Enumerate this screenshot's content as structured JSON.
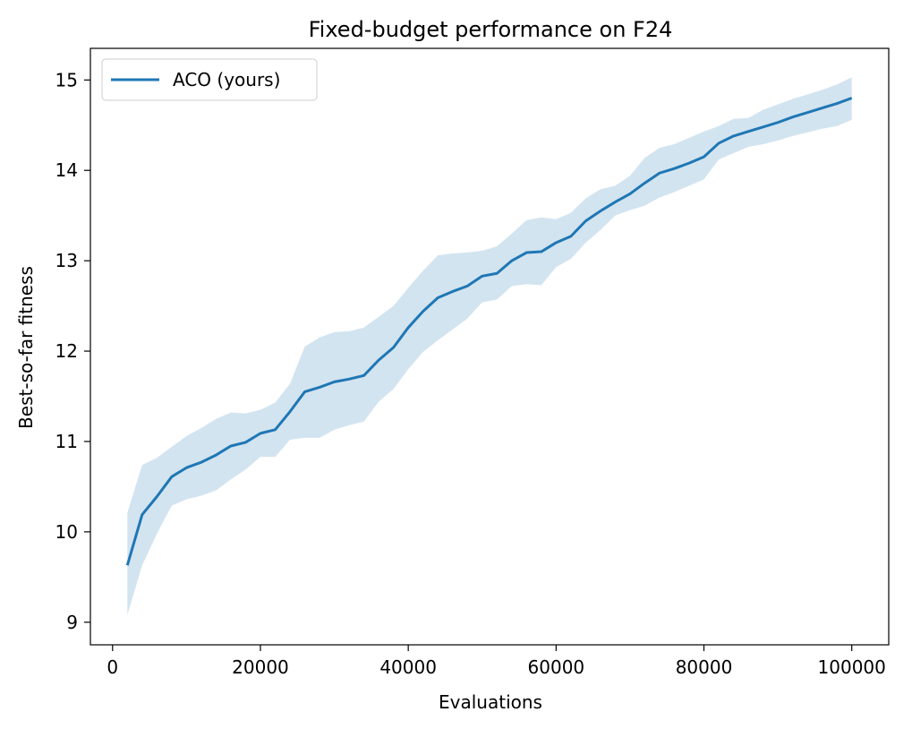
{
  "chart_data": {
    "type": "line",
    "title": "Fixed-budget performance on F24",
    "xlabel": "Evaluations",
    "ylabel": "Best-so-far fitness",
    "xlim": [
      -3000,
      105000
    ],
    "ylim": [
      8.75,
      15.35
    ],
    "xticks": [
      0,
      20000,
      40000,
      60000,
      80000,
      100000
    ],
    "yticks": [
      9,
      10,
      11,
      12,
      13,
      14,
      15
    ],
    "grid": false,
    "legend": {
      "position": "top-left"
    },
    "colors": {
      "line": "#1f77b4",
      "band": "#1f77b4"
    },
    "series": [
      {
        "name": "ACO (yours)",
        "x": [
          2000,
          4000,
          6000,
          8000,
          10000,
          12000,
          14000,
          16000,
          18000,
          20000,
          22000,
          24000,
          26000,
          28000,
          30000,
          32000,
          34000,
          36000,
          38000,
          40000,
          42000,
          44000,
          46000,
          48000,
          50000,
          52000,
          54000,
          56000,
          58000,
          60000,
          62000,
          64000,
          66000,
          68000,
          70000,
          72000,
          74000,
          76000,
          78000,
          80000,
          82000,
          84000,
          86000,
          88000,
          90000,
          92000,
          94000,
          96000,
          98000,
          100000
        ],
        "y": [
          9.63,
          10.19,
          10.39,
          10.61,
          10.71,
          10.77,
          10.85,
          10.95,
          10.99,
          11.09,
          11.13,
          11.33,
          11.55,
          11.6,
          11.66,
          11.69,
          11.73,
          11.9,
          12.04,
          12.26,
          12.44,
          12.59,
          12.66,
          12.72,
          12.83,
          12.86,
          13.0,
          13.09,
          13.1,
          13.2,
          13.27,
          13.44,
          13.55,
          13.65,
          13.74,
          13.86,
          13.97,
          14.02,
          14.08,
          14.15,
          14.3,
          14.38,
          14.43,
          14.48,
          14.53,
          14.59,
          14.64,
          14.69,
          14.74,
          14.8
        ],
        "lower": [
          9.08,
          9.63,
          9.98,
          10.29,
          10.36,
          10.4,
          10.46,
          10.58,
          10.69,
          10.83,
          10.83,
          11.02,
          11.04,
          11.04,
          11.13,
          11.18,
          11.22,
          11.44,
          11.58,
          11.8,
          11.99,
          12.12,
          12.24,
          12.36,
          12.54,
          12.57,
          12.72,
          12.74,
          12.73,
          12.93,
          13.02,
          13.2,
          13.34,
          13.5,
          13.56,
          13.61,
          13.7,
          13.76,
          13.83,
          13.9,
          14.12,
          14.19,
          14.26,
          14.29,
          14.33,
          14.38,
          14.42,
          14.46,
          14.49,
          14.56
        ],
        "upper": [
          10.21,
          10.74,
          10.82,
          10.94,
          11.06,
          11.15,
          11.25,
          11.32,
          11.31,
          11.35,
          11.43,
          11.64,
          12.05,
          12.15,
          12.21,
          12.22,
          12.26,
          12.38,
          12.5,
          12.7,
          12.89,
          13.06,
          13.08,
          13.09,
          13.11,
          13.16,
          13.3,
          13.45,
          13.48,
          13.46,
          13.53,
          13.69,
          13.79,
          13.83,
          13.94,
          14.14,
          14.25,
          14.29,
          14.36,
          14.43,
          14.49,
          14.57,
          14.58,
          14.67,
          14.73,
          14.79,
          14.84,
          14.89,
          14.95,
          15.03
        ]
      }
    ]
  }
}
